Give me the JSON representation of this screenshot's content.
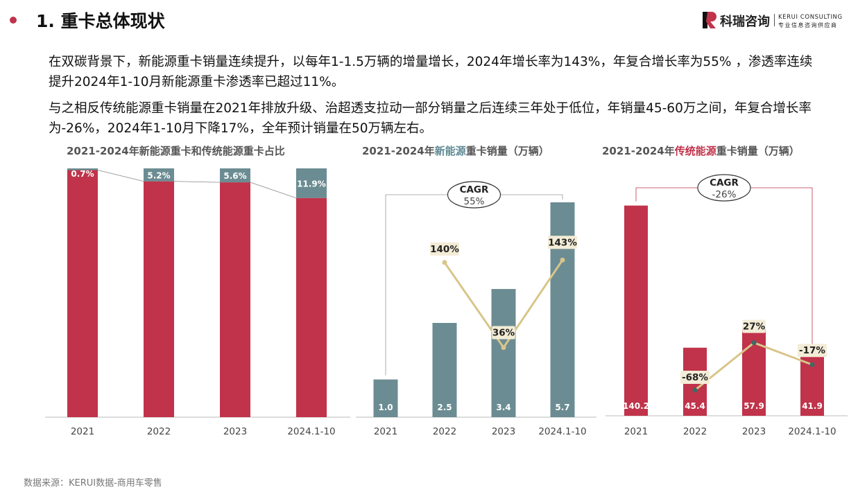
{
  "header": {
    "title": "1. 重卡总体现状"
  },
  "logo": {
    "name": "科瑞咨询",
    "en": "KERUI CONSULTING",
    "sub": "专业信息咨询供应商"
  },
  "paragraphs": [
    "在双碳背景下，新能源重卡销量连续提升，以每年1-1.5万辆的增量增长，2024年增长率为143%，年复合增长率为55% ，渗透率连续提升2024年1-10月新能源重卡渗透率已超过11%。",
    "与之相反传统能源重卡销量在2021年排放升级、治超透支拉动一部分销量之后连续三年处于低位，年销量45-60万之间，年复合增长率为-26%，2024年1-10月下降17%，全年预计销量在50万辆左右。"
  ],
  "chart_titles": {
    "c1": "2021-2024年新能源重卡和传统能源重卡占比",
    "c2_pre": "2021-2024年",
    "c2_hl": "新能源",
    "c2_post": "重卡销量（万辆）",
    "c3_pre": "2021-2024年",
    "c3_hl": "传统能源",
    "c3_post": "重卡销量（万辆）"
  },
  "colors": {
    "new_energy": "#6b8c92",
    "traditional": "#c0334a",
    "growth_line": "#d8c58a"
  },
  "source": "数据来源：KERUI数据-商用车零售",
  "chart_data": [
    {
      "type": "bar",
      "stacked": true,
      "percent": true,
      "categories": [
        "2021",
        "2022",
        "2023",
        "2024.1-10"
      ],
      "series": [
        {
          "values": [
            99.3,
            94.8,
            94.4,
            88.1
          ]
        },
        {
          "values": [
            0.7,
            5.2,
            5.6,
            11.9
          ],
          "labels": [
            "0.7%",
            "5.2%",
            "5.6%",
            "11.9%"
          ]
        }
      ],
      "ylim": [
        0,
        100
      ]
    },
    {
      "type": "bar",
      "categories": [
        "2021",
        "2022",
        "2023",
        "2024.1-10"
      ],
      "values": [
        1.0,
        2.5,
        3.4,
        5.7
      ],
      "value_labels": [
        "1.0",
        "2.5",
        "3.4",
        "5.7"
      ],
      "growth": [
        null,
        140,
        36,
        143
      ],
      "growth_labels": [
        "",
        "140%",
        "36%",
        "143%"
      ],
      "cagr_label": "CAGR",
      "cagr_value": "55%",
      "ylim": [
        0,
        6.6
      ]
    },
    {
      "type": "bar",
      "categories": [
        "2021",
        "2022",
        "2023",
        "2024.1-10"
      ],
      "values": [
        140.2,
        45.4,
        57.9,
        41.9
      ],
      "value_labels": [
        "140.2",
        "45.4",
        "57.9",
        "41.9"
      ],
      "growth": [
        null,
        -68,
        27,
        -17
      ],
      "growth_labels": [
        "",
        "-68%",
        "27%",
        "-17%"
      ],
      "cagr_label": "CAGR",
      "cagr_value": "-26%",
      "ylim": [
        0,
        165
      ]
    }
  ]
}
